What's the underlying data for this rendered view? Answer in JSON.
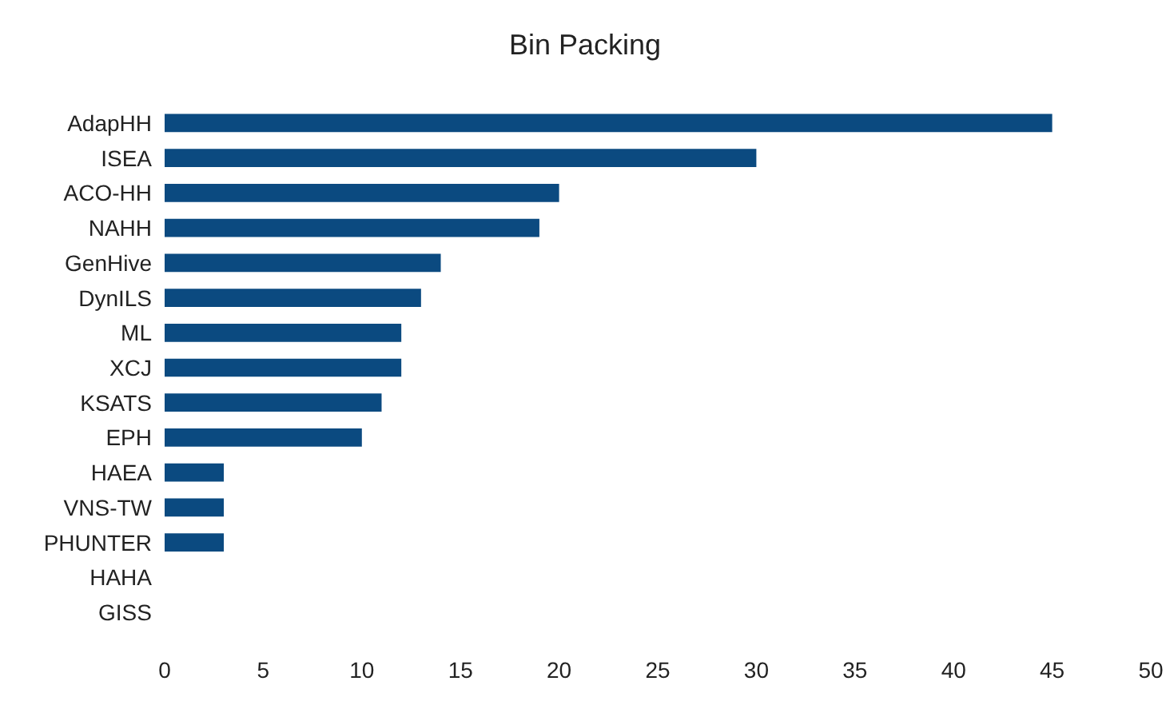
{
  "chart_data": {
    "type": "bar",
    "title": "Bin Packing",
    "orientation": "horizontal",
    "categories": [
      "AdapHH",
      "ISEA",
      "ACO-HH",
      "NAHH",
      "GenHive",
      "DynILS",
      "ML",
      "XCJ",
      "KSATS",
      "EPH",
      "HAEA",
      "VNS-TW",
      "PHUNTER",
      "HAHA",
      "GISS"
    ],
    "values": [
      45,
      30,
      20,
      19,
      14,
      13,
      12,
      12,
      11,
      10,
      3,
      3,
      3,
      0,
      0
    ],
    "color": "#0b4a80",
    "xlim": [
      0,
      50
    ],
    "xticks": [
      0,
      5,
      10,
      15,
      20,
      25,
      30,
      35,
      40,
      45,
      50
    ],
    "grid": false
  }
}
